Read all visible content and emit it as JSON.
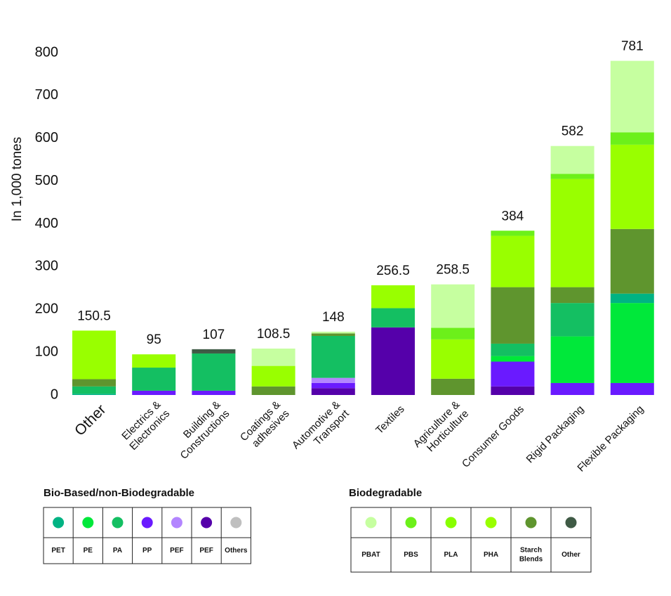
{
  "chart_data": {
    "type": "bar",
    "stacked": true,
    "y_label": "In 1,000 tones",
    "categories": [
      "Other",
      "Electrics & Electronics",
      "Building & Constructions",
      "Coatings & adhesives",
      "Automotive & Transport",
      "Textiles",
      "Agriculture & Horticulture",
      "Consumer Goods",
      "Rigid Packaging",
      "Flexible Packaging"
    ],
    "totals": [
      150.5,
      95,
      107,
      108.5,
      148,
      256.5,
      258.5,
      384,
      582,
      781
    ],
    "ylim": [
      0,
      800
    ],
    "yticks": [
      0,
      100,
      200,
      300,
      400,
      500,
      600,
      700,
      800
    ],
    "series_groups": [
      {
        "title": "Bio-Based/non-Biodegradable",
        "series": [
          {
            "name": "PET",
            "color": "#00b383",
            "values": [
              3,
              0,
              0,
              0,
              0,
              0,
              0,
              0,
              0,
              22
            ]
          },
          {
            "name": "PE",
            "color": "#00e83a",
            "values": [
              0,
              0,
              0,
              0,
              0,
              0,
              0,
              13,
              109,
              187
            ]
          },
          {
            "name": "PA",
            "color": "#14bf62",
            "values": [
              17,
              54,
              87,
              0,
              98,
              45,
              0,
              29,
              78,
              0
            ]
          },
          {
            "name": "PP",
            "color": "#6a1aff",
            "values": [
              0,
              10,
              10,
              0,
              12,
              0,
              0,
              58,
              28,
              28
            ]
          },
          {
            "name": "PEF",
            "color": "#b385ff",
            "values": [
              0,
              0,
              0,
              0,
              12,
              0,
              0,
              0,
              0,
              0
            ]
          },
          {
            "name": "PEF",
            "color": "#5500aa",
            "values": [
              0,
              0,
              0,
              0,
              16,
              158,
              0,
              20,
              0,
              0
            ]
          },
          {
            "name": "Others",
            "color": "#bfbfbf",
            "values": [
              0,
              0,
              0,
              0,
              0,
              0,
              0,
              0,
              0,
              0
            ]
          }
        ]
      },
      {
        "title": "Biodegradable",
        "series": [
          {
            "name": "PBAT",
            "color": "#c6ffa0",
            "values": [
              0,
              0,
              0,
              40.5,
              4,
              0,
              101.5,
              0,
              65,
              167
            ]
          },
          {
            "name": "PBS",
            "color": "#6cf01a",
            "values": [
              0,
              0,
              0,
              0,
              0,
              0,
              27,
              12,
              12,
              29
            ]
          },
          {
            "name": "PLA",
            "color": "#88ff00",
            "values": [
              0,
              0,
              0,
              0,
              0,
              0,
              0,
              0,
              0,
              0
            ]
          },
          {
            "name": "PHA",
            "color": "#99ff00",
            "values": [
              113.5,
              31,
              0,
              48,
              0,
              53.5,
              92,
              120,
              253,
              197
            ]
          },
          {
            "name": "Starch Blends",
            "color": "#5f952e",
            "values": [
              17,
              0,
              0,
              20,
              6,
              0,
              38,
              132,
              37,
              151
            ]
          },
          {
            "name": "Other",
            "color": "#3f5a45",
            "values": [
              0,
              0,
              10,
              0,
              0,
              0,
              0,
              0,
              0,
              0
            ]
          }
        ]
      }
    ]
  }
}
